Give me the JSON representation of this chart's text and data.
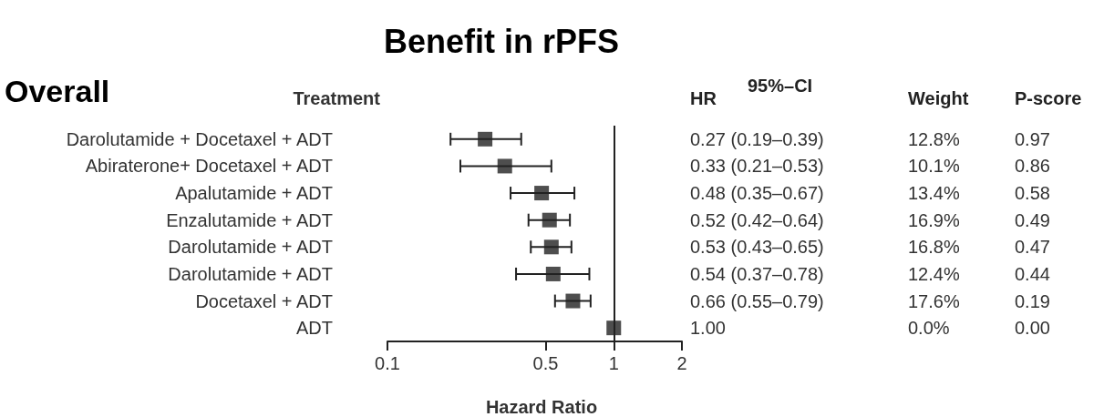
{
  "chart_data": {
    "type": "scatter",
    "orientation": "horizontal",
    "title": "Benefit in rPFS",
    "subtitle": "Overall",
    "ylabel": "Treatment",
    "xlabel": "Hazard Ratio",
    "categories": [
      "Darolutamide + Docetaxel + ADT",
      "Abiraterone+ Docetaxel + ADT",
      "Apalutamide + ADT",
      "Enzalutamide + ADT",
      "Darolutamide + ADT",
      "Darolutamide + ADT",
      "Docetaxel + ADT",
      "ADT"
    ],
    "values": [
      0.27,
      0.33,
      0.48,
      0.52,
      0.53,
      0.54,
      0.66,
      1.0
    ],
    "errors": [
      [
        0.19,
        0.39
      ],
      [
        0.21,
        0.53
      ],
      [
        0.35,
        0.67
      ],
      [
        0.42,
        0.64
      ],
      [
        0.43,
        0.65
      ],
      [
        0.37,
        0.78
      ],
      [
        0.55,
        0.79
      ],
      null
    ],
    "color": "#222222",
    "marker": "square",
    "log": "x",
    "grid": false,
    "xlim": [
      0.1,
      2
    ],
    "xticks": [
      0.1,
      0.5,
      1,
      2
    ],
    "ref_lines": [
      {
        "axis": "x",
        "value": 1,
        "color": "#222222"
      }
    ],
    "annotations": [
      "HR",
      "95%–CI",
      "Weight",
      "P-score",
      "0.27 (0.19–0.39)",
      "0.33 (0.21–0.53)",
      "0.48 (0.35–0.67)",
      "0.52 (0.42–0.64)",
      "0.53 (0.43–0.65)",
      "0.54 (0.37–0.78)",
      "0.66 (0.55–0.79)",
      "1.00",
      "12.8%",
      "10.1%",
      "13.4%",
      "16.9%",
      "16.8%",
      "12.4%",
      "17.6%",
      "0.0%",
      "0.97",
      "0.86",
      "0.58",
      "0.49",
      "0.47",
      "0.44",
      "0.19",
      "0.00"
    ]
  }
}
